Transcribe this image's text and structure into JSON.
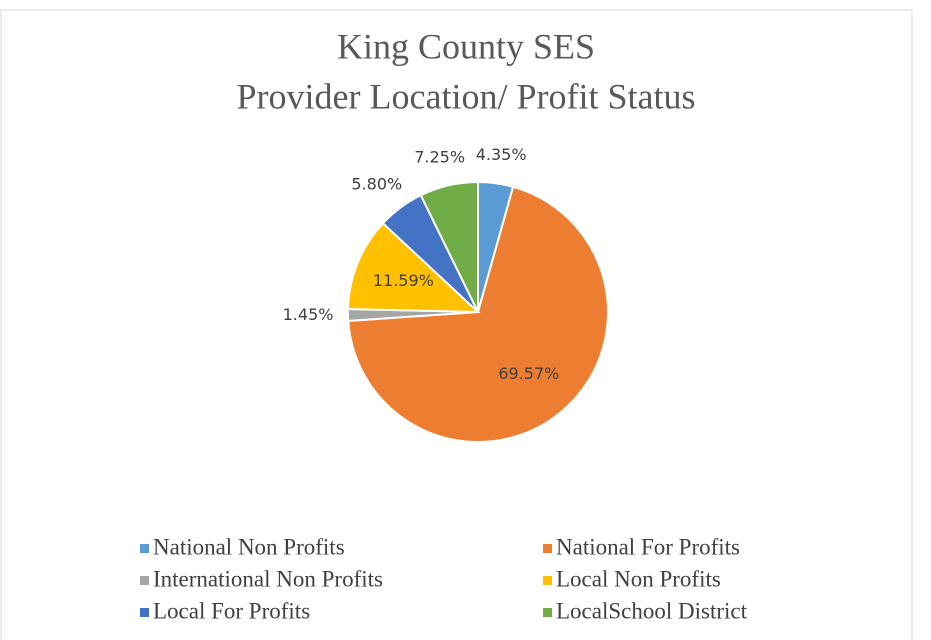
{
  "chart_data": {
    "type": "pie",
    "title": [
      "King County SES",
      "Provider Location/ Profit Status"
    ],
    "categories": [
      "National Non Profits",
      "National For Profits",
      "International Non Profits",
      "Local Non Profits",
      "Local For Profits",
      "LocalSchool District"
    ],
    "values": [
      4.35,
      69.57,
      1.45,
      11.59,
      5.8,
      7.25
    ],
    "value_labels": [
      "4.35%",
      "69.57%",
      "1.45%",
      "11.59%",
      "5.80%",
      "7.25%"
    ],
    "colors": [
      "#5b9bd5",
      "#ed7d31",
      "#a5a5a5",
      "#ffc000",
      "#4472c4",
      "#70ad47"
    ],
    "legend": "bottom"
  }
}
